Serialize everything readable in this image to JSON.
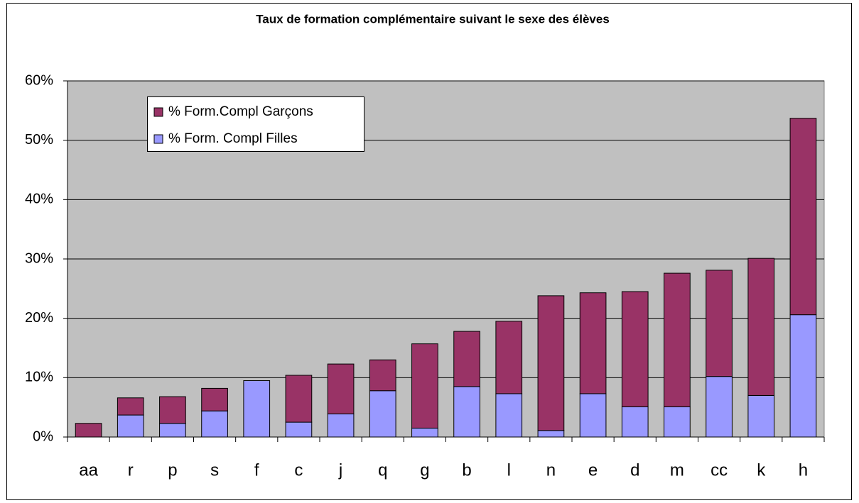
{
  "chart_data": {
    "type": "stacked-bar",
    "title": "Taux de formation complémentaire suivant le sexe des élèves",
    "categories": [
      "aa",
      "r",
      "p",
      "s",
      "f",
      "c",
      "j",
      "q",
      "g",
      "b",
      "l",
      "n",
      "e",
      "d",
      "m",
      "cc",
      "k",
      "h"
    ],
    "series": [
      {
        "name": "% Form.Compl Garçons",
        "color": "#993366",
        "values": [
          2.3,
          2.9,
          4.5,
          3.8,
          0,
          7.9,
          8.4,
          5.2,
          14.2,
          9.3,
          12.2,
          22.7,
          17.0,
          19.4,
          22.5,
          17.9,
          23.1,
          33.1
        ]
      },
      {
        "name": "% Form. Compl Filles",
        "color": "#9999ff",
        "values": [
          0,
          3.7,
          2.3,
          4.4,
          9.5,
          2.5,
          3.9,
          7.8,
          1.5,
          8.5,
          7.3,
          1.1,
          7.3,
          5.1,
          5.1,
          10.2,
          7.0,
          20.6
        ]
      }
    ],
    "ylim": [
      0,
      60
    ],
    "yticks": [
      {
        "value": 0,
        "label": "0%"
      },
      {
        "value": 10,
        "label": "10%"
      },
      {
        "value": 20,
        "label": "20%"
      },
      {
        "value": 30,
        "label": "30%"
      },
      {
        "value": 40,
        "label": "40%"
      },
      {
        "value": 50,
        "label": "50%"
      },
      {
        "value": 60,
        "label": "60%"
      }
    ],
    "grid": true,
    "legend": "top-left"
  }
}
